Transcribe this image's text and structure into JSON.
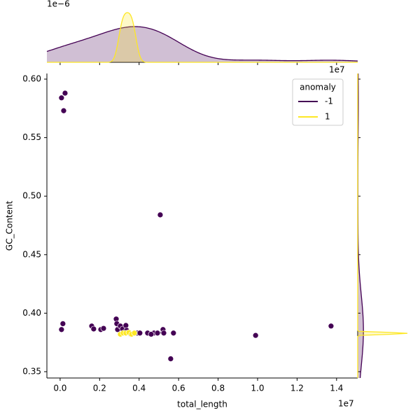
{
  "chart_data": {
    "type": "scatter",
    "x_label": "total_length",
    "y_label": "GC_Content",
    "x_offset": "1e7",
    "top_offset": "1e−6",
    "legend_title": "anomaly",
    "legend_loc": "upper right",
    "xlim": [
      -0.067,
      1.507
    ],
    "ylim": [
      0.3446,
      0.6048
    ],
    "xticks": [
      {
        "value": 0,
        "label": "0.0"
      },
      0.2,
      0.4,
      0.6,
      0.8,
      {
        "value": 1,
        "label": "1.0"
      },
      1.2,
      1.4
    ],
    "yticks": [
      0.35,
      {
        "value": 0.4,
        "label": "0.40"
      },
      0.45,
      {
        "value": 0.5,
        "label": "0.50"
      },
      0.55,
      {
        "value": 0.6,
        "label": "0.60"
      }
    ],
    "series": [
      {
        "name": "-1",
        "color": "#440154",
        "x": [
          0.007,
          0.025,
          0.018,
          0.014,
          0.007,
          0.16,
          0.17,
          0.206,
          0.22,
          0.284,
          0.287,
          0.291,
          0.305,
          0.316,
          0.333,
          0.337,
          0.39,
          0.358,
          0.404,
          0.507,
          0.443,
          0.475,
          0.461,
          0.493,
          0.521,
          0.521,
          0.525,
          0.56,
          0.574,
          0.99,
          1.372
        ],
        "y": [
          0.584,
          0.588,
          0.573,
          0.391,
          0.386,
          0.389,
          0.3865,
          0.386,
          0.387,
          0.395,
          0.391,
          0.386,
          0.389,
          0.3865,
          0.3895,
          0.3853,
          0.383,
          0.382,
          0.383,
          0.484,
          0.383,
          0.383,
          0.382,
          0.383,
          0.3835,
          0.386,
          0.383,
          0.361,
          0.383,
          0.381,
          0.389
        ]
      },
      {
        "name": "1",
        "color": "#fde725",
        "x": [
          0.305,
          0.319,
          0.333,
          0.348,
          0.362,
          0.376
        ],
        "y": [
          0.382,
          0.383,
          0.383,
          0.3835,
          0.382,
          0.383
        ]
      }
    ]
  }
}
